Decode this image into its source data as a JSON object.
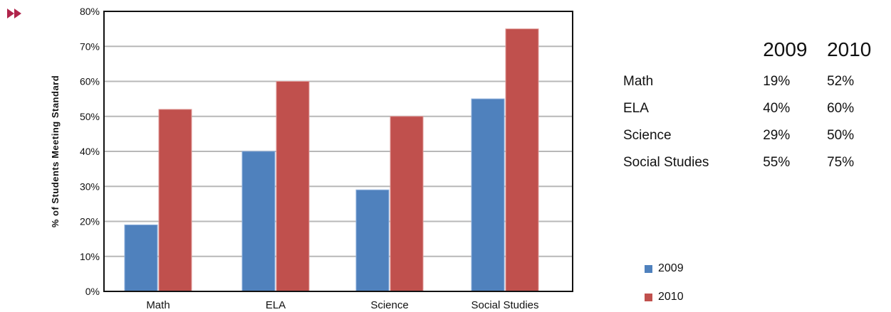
{
  "colors": {
    "series_2009": "#4f81bd",
    "series_2010": "#c0504d",
    "arrow": "#b0244b"
  },
  "icons": {
    "arrow": "double-chevron-right-icon"
  },
  "chart_data": {
    "type": "bar",
    "title": "",
    "xlabel": "",
    "ylabel": "% of Students Meeting Standard",
    "categories": [
      "Math",
      "ELA",
      "Science",
      "Social Studies"
    ],
    "series": [
      {
        "name": "2009",
        "values": [
          19,
          40,
          29,
          55
        ]
      },
      {
        "name": "2010",
        "values": [
          52,
          60,
          50,
          75
        ]
      }
    ],
    "ylim": [
      0,
      80
    ],
    "yticks": [
      "0%",
      "10%",
      "20%",
      "30%",
      "40%",
      "50%",
      "60%",
      "70%",
      "80%"
    ],
    "grid": true,
    "legend": "bottom-right"
  },
  "table": {
    "headers": [
      "",
      "2009",
      "2010"
    ],
    "rows": [
      {
        "label": "Math",
        "v2009": "19%",
        "v2010": "52%"
      },
      {
        "label": "ELA",
        "v2009": "40%",
        "v2010": "60%"
      },
      {
        "label": "Science",
        "v2009": "29%",
        "v2010": "50%"
      },
      {
        "label": "Social Studies",
        "v2009": "55%",
        "v2010": "75%"
      }
    ]
  },
  "legend": {
    "items": [
      "2009",
      "2010"
    ]
  }
}
